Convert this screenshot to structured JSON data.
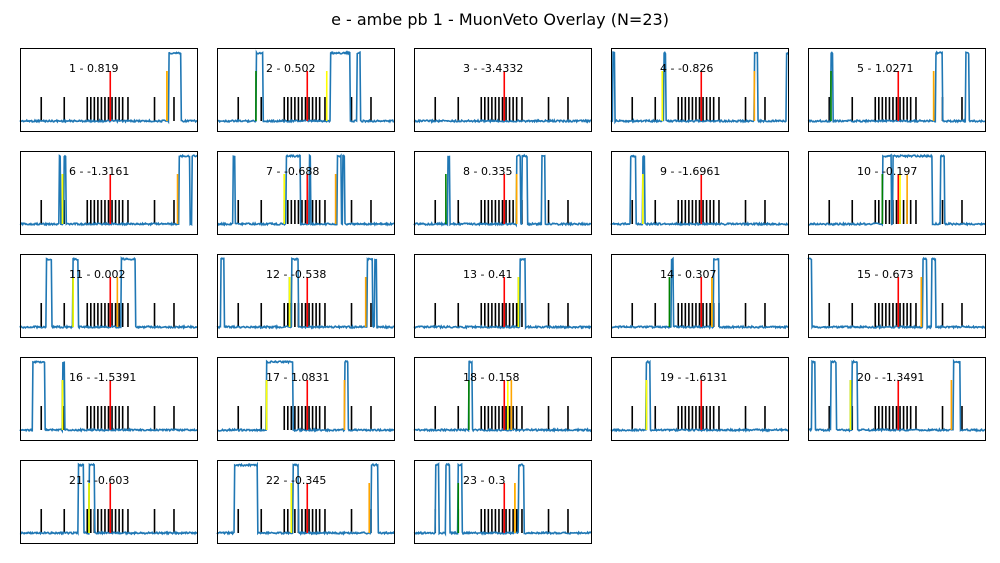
{
  "figure": {
    "title": "e - ambe pb 1 - MuonVeto Overlay (N=23)"
  },
  "colors": {
    "trace": "#1f77b4",
    "reference": "#000000",
    "center": "#ff0000",
    "green": "#008000",
    "yellow": "#ffff00",
    "orange": "#ffa500"
  },
  "chart_data": {
    "type": "line",
    "description_units": "time samples (arbitrary) vs signal amplitude (normalized)",
    "grid": false,
    "axis_ticks": false,
    "layout": "5x5 grid, 23 panels",
    "x_range": [
      0,
      100
    ],
    "y_range": [
      0,
      1
    ],
    "reference_lines": [
      12,
      25,
      38,
      40,
      42,
      44,
      46,
      48,
      50,
      52,
      54,
      56,
      58,
      61,
      76,
      87
    ],
    "reference_line_color": "#000000",
    "panels": [
      {
        "label": "1 - 0.819",
        "red": 51,
        "green": null,
        "yellow": 83,
        "orange": 83,
        "pulses": [
          [
            84,
            91
          ]
        ]
      },
      {
        "label": "2 - 0.502",
        "red": 51,
        "green": 22,
        "yellow": 62,
        "orange": null,
        "pulses": [
          [
            22,
            26
          ],
          [
            64,
            75
          ],
          [
            79,
            81
          ]
        ]
      },
      {
        "label": "3 - -3.4332",
        "red": 51,
        "green": null,
        "yellow": null,
        "orange": null,
        "pulses": []
      },
      {
        "label": "4 - -0.826",
        "red": 51,
        "green": 29,
        "yellow": 29,
        "orange": 81,
        "pulses": [
          [
            1,
            2
          ],
          [
            30,
            31
          ],
          [
            81,
            83
          ],
          [
            99,
            100
          ]
        ]
      },
      {
        "label": "5 - 1.0271",
        "red": 51,
        "green": 13,
        "yellow": 71,
        "orange": 71,
        "pulses": [
          [
            13,
            14
          ],
          [
            72,
            76
          ],
          [
            89,
            91
          ]
        ]
      },
      {
        "label": "6 - -1.3161",
        "red": 51,
        "green": 24,
        "yellow": 24,
        "orange": 89,
        "pulses": [
          [
            22,
            23
          ],
          [
            25,
            26
          ],
          [
            90,
            96
          ],
          [
            97,
            100
          ]
        ]
      },
      {
        "label": "7 - -0.688",
        "red": 51,
        "green": 38,
        "yellow": 38,
        "orange": 67,
        "pulses": [
          [
            9,
            10
          ],
          [
            39,
            47
          ],
          [
            52,
            53
          ],
          [
            68,
            70
          ],
          [
            71,
            72
          ]
        ]
      },
      {
        "label": "8 - 0.335",
        "red": 51,
        "green": 18,
        "yellow": 58,
        "orange": 58,
        "pulses": [
          [
            19,
            20
          ],
          [
            58,
            60
          ],
          [
            61,
            64
          ],
          [
            72,
            74
          ]
        ]
      },
      {
        "label": "9 - -1.6961",
        "red": 51,
        "green": 18,
        "yellow": 18,
        "orange": null,
        "pulses": [
          [
            11,
            14
          ],
          [
            18,
            19
          ]
        ]
      },
      {
        "label": "10 - -0.197",
        "red": 51,
        "green": 42,
        "yellow": 52,
        "orange": 56,
        "pulses": [
          [
            42,
            47
          ],
          [
            48,
            70
          ],
          [
            75,
            77
          ]
        ]
      },
      {
        "label": "11 - 0.002",
        "red": 51,
        "green": 30,
        "yellow": 30,
        "orange": 55,
        "pulses": [
          [
            15,
            18
          ],
          [
            30,
            33
          ],
          [
            57,
            65
          ]
        ]
      },
      {
        "label": "12 - -0.538",
        "red": 51,
        "green": 41,
        "yellow": 41,
        "orange": 84,
        "pulses": [
          [
            2,
            4
          ],
          [
            42,
            46
          ],
          [
            85,
            88
          ],
          [
            89,
            90
          ]
        ]
      },
      {
        "label": "13 - 0.41",
        "red": 51,
        "green": 59,
        "yellow": 59,
        "orange": null,
        "pulses": [
          [
            60,
            63
          ]
        ]
      },
      {
        "label": "14 - 0.307",
        "red": 51,
        "green": 33,
        "yellow": 57,
        "orange": 57,
        "pulses": [
          [
            34,
            35
          ],
          [
            58,
            61
          ]
        ]
      },
      {
        "label": "15 - 0.673",
        "red": 51,
        "green": null,
        "yellow": 64,
        "orange": 64,
        "pulses": [
          [
            0,
            2
          ],
          [
            65,
            67
          ],
          [
            70,
            72
          ]
        ]
      },
      {
        "label": "16 - -1.5391",
        "red": 51,
        "green": 24,
        "yellow": 24,
        "orange": null,
        "pulses": [
          [
            7,
            14
          ],
          [
            24,
            25
          ]
        ]
      },
      {
        "label": "17 - 1.0831",
        "red": 51,
        "green": 28,
        "yellow": 28,
        "orange": 72,
        "pulses": [
          [
            28,
            43
          ],
          [
            72,
            74
          ]
        ]
      },
      {
        "label": "18 - 0.158",
        "red": 51,
        "green": 31,
        "yellow": 53,
        "orange": 55,
        "pulses": [
          [
            31,
            33
          ]
        ]
      },
      {
        "label": "19 - -1.6131",
        "red": 51,
        "green": 20,
        "yellow": 20,
        "orange": null,
        "pulses": [
          [
            20,
            22
          ]
        ]
      },
      {
        "label": "20 - -1.3491",
        "red": 51,
        "green": 24,
        "yellow": 24,
        "orange": 81,
        "pulses": [
          [
            2,
            4
          ],
          [
            13,
            16
          ],
          [
            25,
            28
          ],
          [
            82,
            86
          ]
        ]
      },
      {
        "label": "21 - -0.603",
        "red": 51,
        "green": 39,
        "yellow": 39,
        "orange": null,
        "pulses": [
          [
            33,
            36
          ],
          [
            39,
            42
          ]
        ]
      },
      {
        "label": "22 - -0.345",
        "red": 51,
        "green": 42,
        "yellow": 42,
        "orange": 86,
        "pulses": [
          [
            10,
            23
          ],
          [
            43,
            46
          ],
          [
            87,
            91
          ]
        ]
      },
      {
        "label": "23 - 0.3",
        "red": 51,
        "green": 25,
        "yellow": 57,
        "orange": 57,
        "pulses": [
          [
            12,
            14
          ],
          [
            18,
            20
          ],
          [
            25,
            27
          ],
          [
            59,
            62
          ]
        ]
      }
    ]
  }
}
